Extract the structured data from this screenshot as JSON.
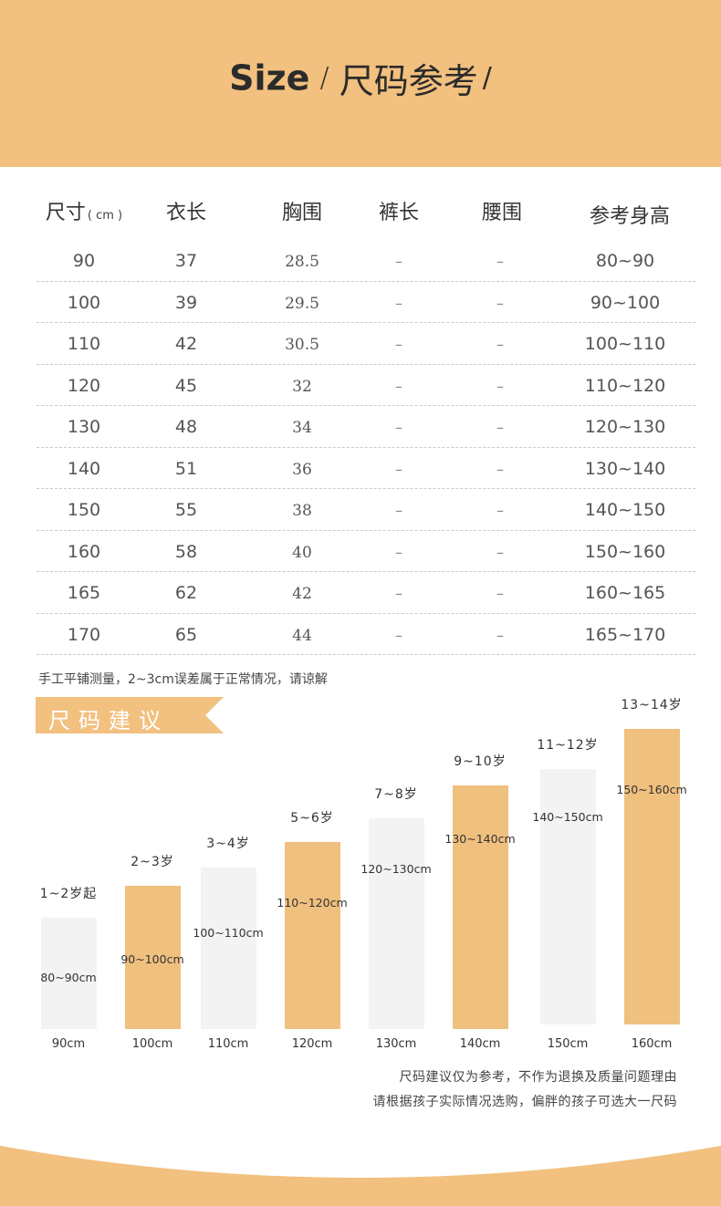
{
  "header": {
    "title_en": "Size",
    "sep": "/",
    "title_cn": "尺码参考",
    "sep_end": "/"
  },
  "table": {
    "headers": [
      "尺寸",
      "衣长",
      "胸围",
      "裤长",
      "腰围",
      "参考身高"
    ],
    "unit": "( cm )",
    "rows": [
      [
        "90",
        "37",
        "28.5",
        "–",
        "–",
        "80~90"
      ],
      [
        "100",
        "39",
        "29.5",
        "–",
        "–",
        "90~100"
      ],
      [
        "110",
        "42",
        "30.5",
        "–",
        "–",
        "100~110"
      ],
      [
        "120",
        "45",
        "32",
        "–",
        "–",
        "110~120"
      ],
      [
        "130",
        "48",
        "34",
        "–",
        "–",
        "120~130"
      ],
      [
        "140",
        "51",
        "36",
        "–",
        "–",
        "130~140"
      ],
      [
        "150",
        "55",
        "38",
        "–",
        "–",
        "140~150"
      ],
      [
        "160",
        "58",
        "40",
        "–",
        "–",
        "150~160"
      ],
      [
        "165",
        "62",
        "42",
        "–",
        "–",
        "160~165"
      ],
      [
        "170",
        "65",
        "44",
        "–",
        "–",
        "165~170"
      ]
    ]
  },
  "note": "手工平铺测量，2~3cm误差属于正常情况，请谅解",
  "section_title": "尺码建议",
  "suggestion_bars": [
    {
      "age": "1~2岁起",
      "range": "80~90cm",
      "size": "90cm",
      "style": "gray"
    },
    {
      "age": "2~3岁",
      "range": "90~100cm",
      "size": "100cm",
      "style": "orange"
    },
    {
      "age": "3~4岁",
      "range": "100~110cm",
      "size": "110cm",
      "style": "gray"
    },
    {
      "age": "5~6岁",
      "range": "110~120cm",
      "size": "120cm",
      "style": "orange"
    },
    {
      "age": "7~8岁",
      "range": "120~130cm",
      "size": "130cm",
      "style": "gray"
    },
    {
      "age": "9~10岁",
      "range": "130~140cm",
      "size": "140cm",
      "style": "orange"
    },
    {
      "age": "11~12岁",
      "range": "140~150cm",
      "size": "150cm",
      "style": "gray"
    },
    {
      "age": "13~14岁",
      "range": "150~160cm",
      "size": "160cm",
      "style": "orange"
    }
  ],
  "footer": {
    "line1": "尺码建议仅为参考，不作为退换及质量问题理由",
    "line2": "请根据孩子实际情况选购，偏胖的孩子可选大一尺码"
  },
  "colors": {
    "accent": "#f2c07f",
    "bar_gray": "#f3f3f3",
    "bar_orange": "#f0c07f"
  }
}
